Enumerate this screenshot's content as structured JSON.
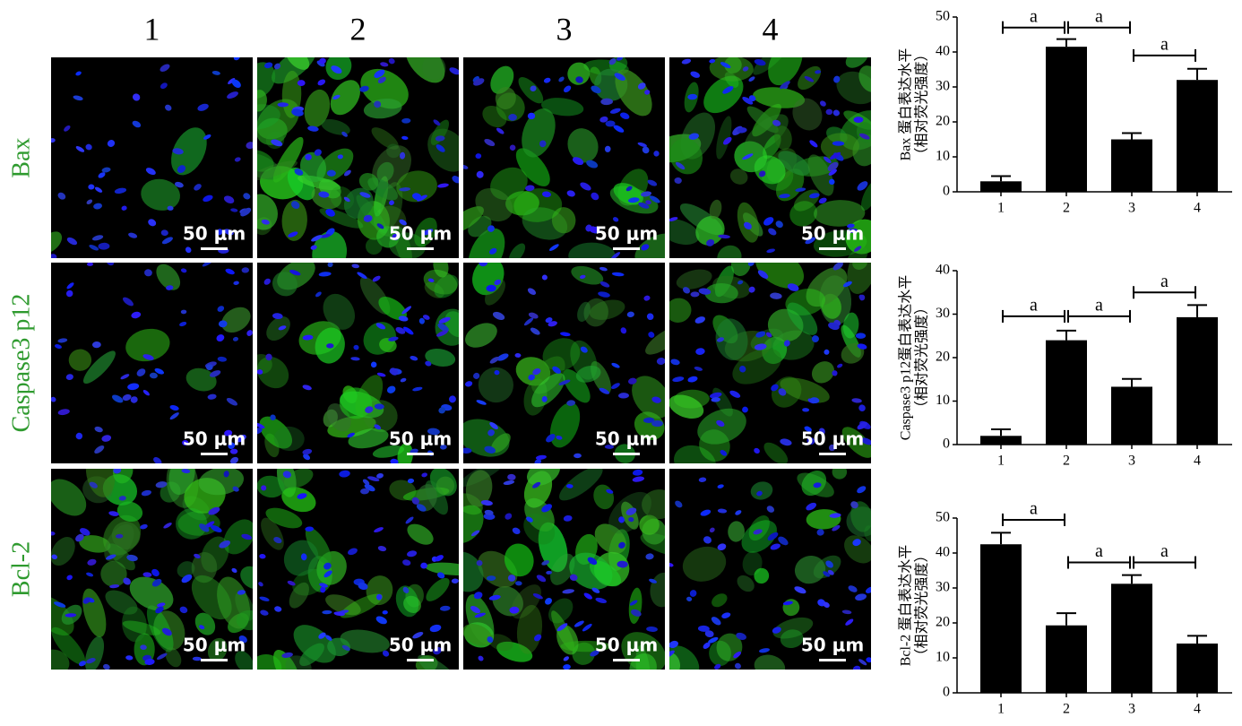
{
  "micrographs": {
    "columns": [
      "1",
      "2",
      "3",
      "4"
    ],
    "rows": [
      "Bax",
      "Caspase3 p12",
      "Bcl-2"
    ],
    "scale_bar": "50 μm"
  },
  "chart_data": [
    {
      "type": "bar",
      "ylabel": [
        "Bax 蛋白表达水平",
        "（相对荧光强度）"
      ],
      "categories": [
        "1",
        "2",
        "3",
        "4"
      ],
      "values": [
        3,
        41.5,
        15,
        32
      ],
      "errors": [
        1.5,
        2.2,
        1.8,
        3.2
      ],
      "color": "#000000",
      "ylim": [
        0,
        50
      ],
      "yticks": [
        0,
        10,
        20,
        30,
        40,
        50
      ],
      "annotations": [
        {
          "between": [
            0,
            1
          ],
          "y": 47,
          "label": "a"
        },
        {
          "between": [
            1,
            2
          ],
          "y": 47,
          "label": "a"
        },
        {
          "between": [
            2,
            3
          ],
          "y": 39,
          "label": "a"
        }
      ]
    },
    {
      "type": "bar",
      "ylabel": [
        "Caspase3 p12蛋白表达水平",
        "（相对荧光强度）"
      ],
      "categories": [
        "1",
        "2",
        "3",
        "4"
      ],
      "values": [
        2,
        24,
        13.3,
        29.3
      ],
      "errors": [
        1.5,
        2.2,
        1.8,
        2.8
      ],
      "color": "#000000",
      "ylim": [
        0,
        40
      ],
      "yticks": [
        0,
        10,
        20,
        30,
        40
      ],
      "annotations": [
        {
          "between": [
            0,
            1
          ],
          "y": 29.5,
          "label": "a"
        },
        {
          "between": [
            1,
            2
          ],
          "y": 29.5,
          "label": "a"
        },
        {
          "between": [
            2,
            3
          ],
          "y": 35,
          "label": "a"
        }
      ]
    },
    {
      "type": "bar",
      "ylabel": [
        "Bcl-2 蛋白表达水平",
        "（相对荧光强度）"
      ],
      "categories": [
        "1",
        "2",
        "3",
        "4"
      ],
      "values": [
        42.5,
        19.3,
        31.2,
        14.1
      ],
      "errors": [
        3.3,
        3.5,
        2.5,
        2.2
      ],
      "color": "#000000",
      "ylim": [
        0,
        50
      ],
      "yticks": [
        0,
        10,
        20,
        30,
        40,
        50
      ],
      "annotations": [
        {
          "between": [
            0,
            1
          ],
          "y": 49.5,
          "label": "a"
        },
        {
          "between": [
            1,
            2
          ],
          "y": 37.3,
          "label": "a"
        },
        {
          "between": [
            2,
            3
          ],
          "y": 37.3,
          "label": "a"
        }
      ]
    }
  ]
}
